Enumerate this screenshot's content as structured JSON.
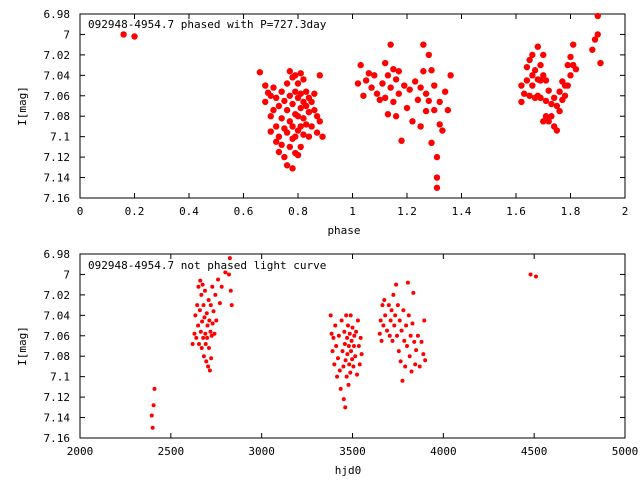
{
  "colors": {
    "point": "#ff0000",
    "frame": "#000000",
    "background": "#ffffff"
  },
  "chart_data": [
    {
      "type": "scatter",
      "title": "092948-4954.7 phased with P=727.3day",
      "xlabel": "phase",
      "ylabel": "I[mag]",
      "xlim": [
        0,
        2
      ],
      "ylim": [
        6.98,
        7.16
      ],
      "y_inverted": true,
      "grid": false,
      "marker": "filled-circle-large",
      "xticks": [
        "0",
        "0.2",
        "0.4",
        "0.6",
        "0.8",
        "1",
        "1.2",
        "1.4",
        "1.6",
        "1.8",
        "2"
      ],
      "yticks": [
        "6.98",
        "7",
        "7.02",
        "7.04",
        "7.06",
        "7.08",
        "7.1",
        "7.12",
        "7.14",
        "7.16"
      ],
      "points": [
        [
          0.16,
          7.0
        ],
        [
          0.2,
          7.002
        ],
        [
          0.66,
          7.037
        ],
        [
          0.68,
          7.05
        ],
        [
          0.68,
          7.066
        ],
        [
          0.69,
          7.057
        ],
        [
          0.7,
          7.06
        ],
        [
          0.7,
          7.08
        ],
        [
          0.7,
          7.095
        ],
        [
          0.71,
          7.052
        ],
        [
          0.71,
          7.074
        ],
        [
          0.72,
          7.062
        ],
        [
          0.72,
          7.09
        ],
        [
          0.72,
          7.105
        ],
        [
          0.73,
          7.07
        ],
        [
          0.73,
          7.1
        ],
        [
          0.73,
          7.115
        ],
        [
          0.74,
          7.056
        ],
        [
          0.74,
          7.082
        ],
        [
          0.74,
          7.108
        ],
        [
          0.75,
          7.065
        ],
        [
          0.75,
          7.092
        ],
        [
          0.75,
          7.12
        ],
        [
          0.76,
          7.048
        ],
        [
          0.76,
          7.074
        ],
        [
          0.76,
          7.096
        ],
        [
          0.76,
          7.128
        ],
        [
          0.77,
          7.036
        ],
        [
          0.77,
          7.06
        ],
        [
          0.77,
          7.085
        ],
        [
          0.77,
          7.11
        ],
        [
          0.78,
          7.042
        ],
        [
          0.78,
          7.068
        ],
        [
          0.78,
          7.09
        ],
        [
          0.78,
          7.102
        ],
        [
          0.78,
          7.131
        ],
        [
          0.79,
          7.04
        ],
        [
          0.79,
          7.056
        ],
        [
          0.79,
          7.078
        ],
        [
          0.79,
          7.1
        ],
        [
          0.79,
          7.116
        ],
        [
          0.8,
          7.048
        ],
        [
          0.8,
          7.062
        ],
        [
          0.8,
          7.08
        ],
        [
          0.8,
          7.094
        ],
        [
          0.8,
          7.118
        ],
        [
          0.81,
          7.038
        ],
        [
          0.81,
          7.058
        ],
        [
          0.81,
          7.072
        ],
        [
          0.81,
          7.09
        ],
        [
          0.81,
          7.11
        ],
        [
          0.82,
          7.044
        ],
        [
          0.82,
          7.066
        ],
        [
          0.82,
          7.082
        ],
        [
          0.82,
          7.098
        ],
        [
          0.83,
          7.056
        ],
        [
          0.83,
          7.07
        ],
        [
          0.83,
          7.088
        ],
        [
          0.84,
          7.062
        ],
        [
          0.84,
          7.076
        ],
        [
          0.84,
          7.1
        ],
        [
          0.85,
          7.066
        ],
        [
          0.85,
          7.09
        ],
        [
          0.86,
          7.058
        ],
        [
          0.86,
          7.074
        ],
        [
          0.87,
          7.08
        ],
        [
          0.87,
          7.096
        ],
        [
          0.88,
          7.04
        ],
        [
          0.88,
          7.085
        ],
        [
          0.89,
          7.1
        ],
        [
          1.02,
          7.048
        ],
        [
          1.03,
          7.03
        ],
        [
          1.04,
          7.06
        ],
        [
          1.05,
          7.045
        ],
        [
          1.06,
          7.038
        ],
        [
          1.07,
          7.052
        ],
        [
          1.08,
          7.04
        ],
        [
          1.09,
          7.058
        ],
        [
          1.1,
          7.064
        ],
        [
          1.11,
          7.048
        ],
        [
          1.12,
          7.028
        ],
        [
          1.12,
          7.062
        ],
        [
          1.13,
          7.04
        ],
        [
          1.13,
          7.078
        ],
        [
          1.14,
          7.01
        ],
        [
          1.14,
          7.052
        ],
        [
          1.15,
          7.034
        ],
        [
          1.15,
          7.066
        ],
        [
          1.16,
          7.044
        ],
        [
          1.16,
          7.08
        ],
        [
          1.17,
          7.036
        ],
        [
          1.17,
          7.058
        ],
        [
          1.18,
          7.104
        ],
        [
          1.19,
          7.05
        ],
        [
          1.2,
          7.072
        ],
        [
          1.21,
          7.054
        ],
        [
          1.22,
          7.085
        ],
        [
          1.23,
          7.046
        ],
        [
          1.24,
          7.064
        ],
        [
          1.25,
          7.052
        ],
        [
          1.25,
          7.09
        ],
        [
          1.26,
          7.01
        ],
        [
          1.26,
          7.036
        ],
        [
          1.27,
          7.058
        ],
        [
          1.27,
          7.075
        ],
        [
          1.28,
          7.065
        ],
        [
          1.28,
          7.02
        ],
        [
          1.29,
          7.035
        ],
        [
          1.29,
          7.106
        ],
        [
          1.3,
          7.05
        ],
        [
          1.3,
          7.074
        ],
        [
          1.31,
          7.12
        ],
        [
          1.31,
          7.14
        ],
        [
          1.31,
          7.15
        ],
        [
          1.32,
          7.066
        ],
        [
          1.32,
          7.088
        ],
        [
          1.33,
          7.094
        ],
        [
          1.34,
          7.056
        ],
        [
          1.35,
          7.074
        ],
        [
          1.36,
          7.04
        ],
        [
          1.62,
          7.05
        ],
        [
          1.62,
          7.066
        ],
        [
          1.63,
          7.058
        ],
        [
          1.64,
          7.045
        ],
        [
          1.64,
          7.032
        ],
        [
          1.65,
          7.025
        ],
        [
          1.65,
          7.06
        ],
        [
          1.66,
          7.04
        ],
        [
          1.66,
          7.05
        ],
        [
          1.66,
          7.02
        ],
        [
          1.67,
          7.035
        ],
        [
          1.67,
          7.062
        ],
        [
          1.68,
          7.012
        ],
        [
          1.68,
          7.044
        ],
        [
          1.68,
          7.06
        ],
        [
          1.69,
          7.03
        ],
        [
          1.69,
          7.045
        ],
        [
          1.69,
          7.062
        ],
        [
          1.7,
          7.02
        ],
        [
          1.7,
          7.04
        ],
        [
          1.7,
          7.085
        ],
        [
          1.71,
          7.045
        ],
        [
          1.71,
          7.065
        ],
        [
          1.71,
          7.08
        ],
        [
          1.72,
          7.055
        ],
        [
          1.72,
          7.085
        ],
        [
          1.73,
          7.068
        ],
        [
          1.73,
          7.08
        ],
        [
          1.74,
          7.062
        ],
        [
          1.74,
          7.09
        ],
        [
          1.75,
          7.07
        ],
        [
          1.75,
          7.094
        ],
        [
          1.76,
          7.056
        ],
        [
          1.76,
          7.075
        ],
        [
          1.77,
          7.046
        ],
        [
          1.77,
          7.064
        ],
        [
          1.78,
          7.05
        ],
        [
          1.78,
          7.06
        ],
        [
          1.79,
          7.03
        ],
        [
          1.79,
          7.05
        ],
        [
          1.8,
          7.022
        ],
        [
          1.8,
          7.04
        ],
        [
          1.81,
          7.01
        ],
        [
          1.81,
          7.03
        ],
        [
          1.82,
          7.034
        ],
        [
          1.88,
          7.015
        ],
        [
          1.89,
          7.005
        ],
        [
          1.9,
          6.982
        ],
        [
          1.9,
          7.0
        ],
        [
          1.91,
          7.028
        ]
      ]
    },
    {
      "type": "scatter",
      "title": "092948-4954.7 not phased light curve",
      "xlabel": "hjd0",
      "ylabel": "I[mag]",
      "xlim": [
        2000,
        5000
      ],
      "ylim": [
        6.98,
        7.16
      ],
      "y_inverted": true,
      "grid": false,
      "marker": "filled-circle-small",
      "xticks": [
        "2000",
        "2500",
        "3000",
        "3500",
        "4000",
        "4500",
        "5000"
      ],
      "yticks": [
        "6.98",
        "7",
        "7.02",
        "7.04",
        "7.06",
        "7.08",
        "7.1",
        "7.12",
        "7.14",
        "7.16"
      ],
      "points": [
        [
          2395,
          7.138
        ],
        [
          2400,
          7.15
        ],
        [
          2405,
          7.128
        ],
        [
          2410,
          7.112
        ],
        [
          2620,
          7.068
        ],
        [
          2630,
          7.058
        ],
        [
          2635,
          7.04
        ],
        [
          2640,
          7.062
        ],
        [
          2645,
          7.03
        ],
        [
          2650,
          7.05
        ],
        [
          2652,
          7.012
        ],
        [
          2655,
          7.068
        ],
        [
          2660,
          7.035
        ],
        [
          2662,
          7.006
        ],
        [
          2665,
          7.056
        ],
        [
          2668,
          7.02
        ],
        [
          2670,
          7.072
        ],
        [
          2672,
          7.046
        ],
        [
          2675,
          7.01
        ],
        [
          2678,
          7.062
        ],
        [
          2680,
          7.03
        ],
        [
          2682,
          7.08
        ],
        [
          2685,
          7.042
        ],
        [
          2688,
          7.016
        ],
        [
          2690,
          7.058
        ],
        [
          2692,
          7.068
        ],
        [
          2695,
          7.085
        ],
        [
          2698,
          7.038
        ],
        [
          2700,
          7.062
        ],
        [
          2702,
          7.05
        ],
        [
          2705,
          7.09
        ],
        [
          2708,
          7.025
        ],
        [
          2710,
          7.072
        ],
        [
          2712,
          7.045
        ],
        [
          2715,
          7.094
        ],
        [
          2718,
          7.056
        ],
        [
          2720,
          7.03
        ],
        [
          2722,
          7.082
        ],
        [
          2725,
          7.06
        ],
        [
          2728,
          7.012
        ],
        [
          2730,
          7.048
        ],
        [
          2735,
          7.036
        ],
        [
          2740,
          7.058
        ],
        [
          2745,
          7.02
        ],
        [
          2750,
          7.045
        ],
        [
          2760,
          7.005
        ],
        [
          2770,
          7.028
        ],
        [
          2780,
          7.012
        ],
        [
          2800,
          6.998
        ],
        [
          2820,
          7.0
        ],
        [
          2825,
          6.984
        ],
        [
          2830,
          7.016
        ],
        [
          2835,
          7.03
        ],
        [
          3380,
          7.04
        ],
        [
          3385,
          7.058
        ],
        [
          3390,
          7.075
        ],
        [
          3395,
          7.062
        ],
        [
          3400,
          7.088
        ],
        [
          3405,
          7.05
        ],
        [
          3410,
          7.07
        ],
        [
          3415,
          7.1
        ],
        [
          3420,
          7.082
        ],
        [
          3425,
          7.06
        ],
        [
          3430,
          7.094
        ],
        [
          3435,
          7.112
        ],
        [
          3440,
          7.045
        ],
        [
          3445,
          7.075
        ],
        [
          3450,
          7.09
        ],
        [
          3452,
          7.122
        ],
        [
          3455,
          7.056
        ],
        [
          3458,
          7.068
        ],
        [
          3460,
          7.13
        ],
        [
          3462,
          7.084
        ],
        [
          3465,
          7.04
        ],
        [
          3468,
          7.1
        ],
        [
          3470,
          7.062
        ],
        [
          3472,
          7.078
        ],
        [
          3475,
          7.05
        ],
        [
          3478,
          7.108
        ],
        [
          3480,
          7.07
        ],
        [
          3482,
          7.088
        ],
        [
          3485,
          7.058
        ],
        [
          3488,
          7.096
        ],
        [
          3490,
          7.04
        ],
        [
          3492,
          7.075
        ],
        [
          3495,
          7.065
        ],
        [
          3498,
          7.083
        ],
        [
          3500,
          7.052
        ],
        [
          3505,
          7.09
        ],
        [
          3508,
          7.07
        ],
        [
          3510,
          7.06
        ],
        [
          3515,
          7.08
        ],
        [
          3520,
          7.056
        ],
        [
          3525,
          7.098
        ],
        [
          3530,
          7.045
        ],
        [
          3535,
          7.07
        ],
        [
          3540,
          7.088
        ],
        [
          3545,
          7.062
        ],
        [
          3550,
          7.078
        ],
        [
          3650,
          7.058
        ],
        [
          3655,
          7.045
        ],
        [
          3660,
          7.065
        ],
        [
          3665,
          7.03
        ],
        [
          3670,
          7.05
        ],
        [
          3675,
          7.025
        ],
        [
          3680,
          7.04
        ],
        [
          3690,
          7.055
        ],
        [
          3700,
          7.03
        ],
        [
          3705,
          7.06
        ],
        [
          3710,
          7.045
        ],
        [
          3715,
          7.035
        ],
        [
          3720,
          7.065
        ],
        [
          3725,
          7.02
        ],
        [
          3730,
          7.05
        ],
        [
          3735,
          7.04
        ],
        [
          3740,
          7.01
        ],
        [
          3745,
          7.06
        ],
        [
          3750,
          7.03
        ],
        [
          3755,
          7.075
        ],
        [
          3760,
          7.045
        ],
        [
          3765,
          7.085
        ],
        [
          3770,
          7.055
        ],
        [
          3775,
          7.104
        ],
        [
          3780,
          7.035
        ],
        [
          3785,
          7.065
        ],
        [
          3790,
          7.09
        ],
        [
          3795,
          7.05
        ],
        [
          3800,
          7.07
        ],
        [
          3805,
          7.008
        ],
        [
          3810,
          7.04
        ],
        [
          3815,
          7.08
        ],
        [
          3820,
          7.06
        ],
        [
          3825,
          7.095
        ],
        [
          3830,
          7.048
        ],
        [
          3835,
          7.018
        ],
        [
          3840,
          7.066
        ],
        [
          3845,
          7.088
        ],
        [
          3850,
          7.074
        ],
        [
          3860,
          7.06
        ],
        [
          3870,
          7.09
        ],
        [
          3880,
          7.066
        ],
        [
          3890,
          7.078
        ],
        [
          3895,
          7.045
        ],
        [
          3900,
          7.084
        ],
        [
          4480,
          7.0
        ],
        [
          4510,
          7.002
        ]
      ]
    }
  ]
}
